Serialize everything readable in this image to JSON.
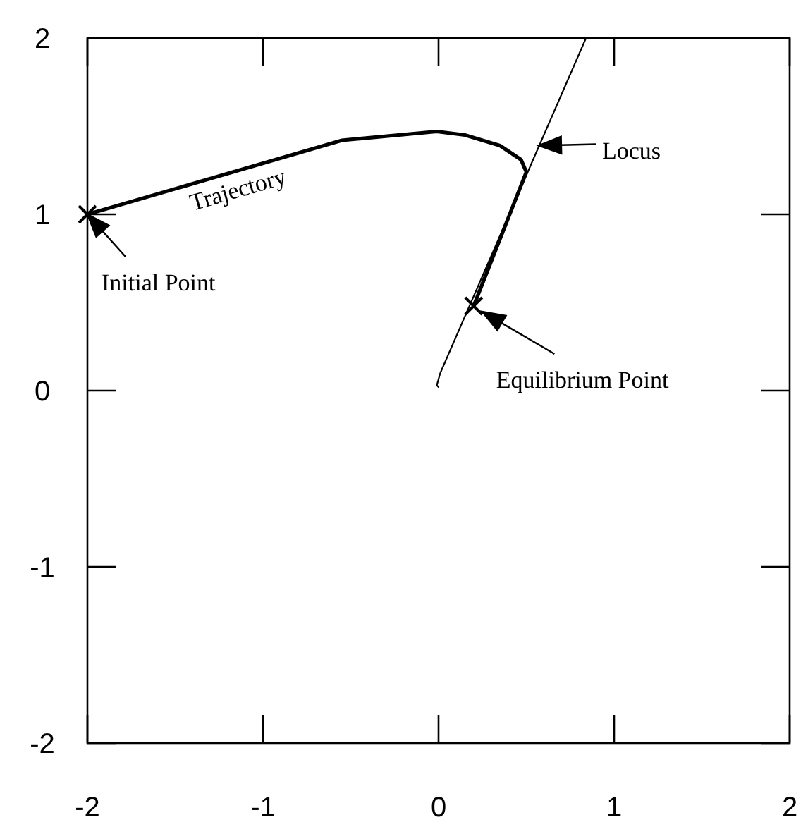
{
  "chart_data": {
    "type": "line",
    "xlim": [
      -2,
      2
    ],
    "ylim": [
      -2,
      2
    ],
    "xticks": [
      -2,
      -1,
      0,
      1,
      2
    ],
    "yticks": [
      -2,
      -1,
      0,
      1,
      2
    ],
    "grid": false,
    "line_style": "solid",
    "series": [
      {
        "name": "Trajectory",
        "color": "#000000",
        "x": [
          -2,
          -0.55,
          -0.01,
          0.15,
          0.35,
          0.47,
          0.5,
          0.2
        ],
        "values": [
          1,
          1.42,
          1.47,
          1.45,
          1.39,
          1.31,
          1.24,
          0.48
        ]
      },
      {
        "color": "#000000",
        "x": [
          0,
          -0.01,
          0.01,
          0.84
        ],
        "values": [
          0.02,
          0.03,
          0.1,
          2
        ]
      },
      {
        "type": "scatter",
        "marker": "cross",
        "color": "#000000",
        "x": [
          -2,
          0.2
        ],
        "values": [
          1,
          0.48
        ]
      }
    ],
    "annotations": [
      {
        "text": "Initial Point",
        "x": -2,
        "y": 1
      },
      {
        "text": "Equilibrium Point",
        "x": 0.2,
        "y": 0.48
      },
      {
        "text": "Locus",
        "x": 0.57,
        "y": 1.39
      }
    ]
  }
}
